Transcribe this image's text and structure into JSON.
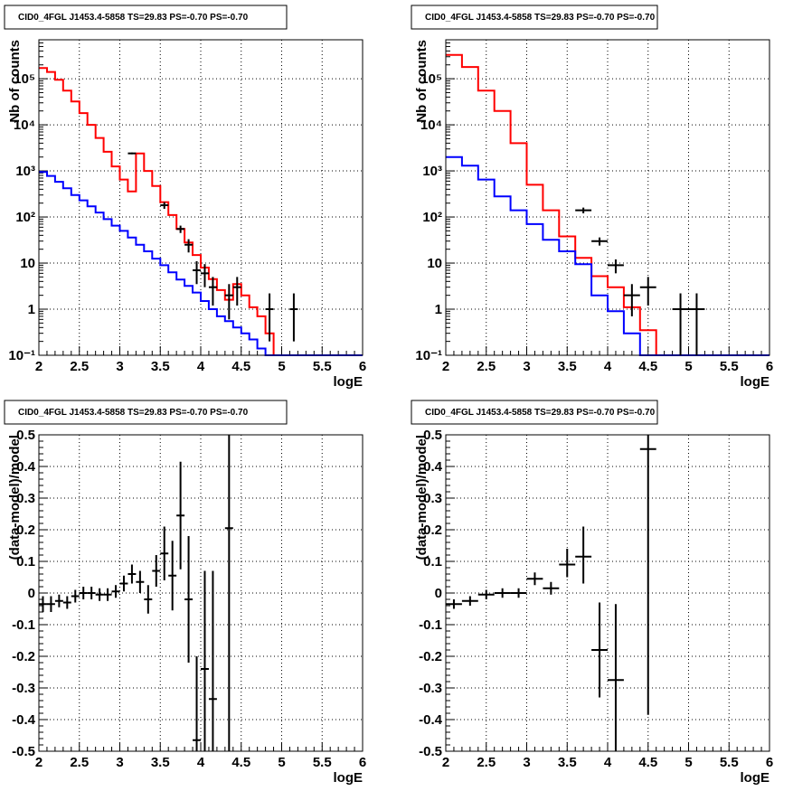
{
  "chart_data": [
    {
      "type": "line",
      "title": "CID0_4FGL J1453.4-5858 TS=29.83 PS=-0.70 PS=-0.70",
      "xlabel": "logE",
      "ylabel": "Nb of counts",
      "xlim": [
        2,
        6
      ],
      "ylim": [
        0.1,
        700000
      ],
      "yscale": "log",
      "grid": true,
      "xticks": [
        "2",
        "2.5",
        "3",
        "3.5",
        "4",
        "4.5",
        "5",
        "5.5",
        "6"
      ],
      "yticks": [
        "10⁻¹",
        "1",
        "10",
        "10²",
        "10³",
        "10⁴",
        "10⁵"
      ],
      "bin_edges": [
        2.0,
        2.1,
        2.2,
        2.3,
        2.4,
        2.5,
        2.6,
        2.7,
        2.8,
        2.9,
        3.0,
        3.1,
        3.2,
        3.3,
        3.4,
        3.5,
        3.6,
        3.7,
        3.8,
        3.9,
        4.0,
        4.1,
        4.2,
        4.3,
        4.4,
        4.5,
        4.6,
        4.7,
        4.8,
        4.9,
        5.0,
        5.1,
        5.2,
        5.3,
        5.4,
        5.5,
        5.6,
        5.7,
        5.8,
        5.9,
        6.0
      ],
      "series": [
        {
          "color": "#ff0000",
          "kind": "step",
          "values": [
            170000,
            140000,
            95000,
            55000,
            32000,
            18000,
            10000,
            5200,
            2600,
            1250,
            650,
            360,
            2400,
            1000,
            470,
            210,
            110,
            55,
            28,
            15,
            8,
            4.5,
            2.6,
            1.6,
            3.5,
            2.0,
            1.1,
            0.7,
            0.3,
            0.1,
            0.1,
            0.1,
            0.1,
            0.1,
            0.1,
            0.1,
            0.1,
            0.1,
            0.1,
            0.1
          ]
        },
        {
          "color": "#0000ff",
          "kind": "step",
          "values": [
            950,
            780,
            580,
            420,
            300,
            230,
            170,
            125,
            90,
            65,
            50,
            36,
            25,
            18,
            12.5,
            9,
            6.3,
            4.4,
            3.2,
            2.3,
            1.5,
            1.0,
            0.7,
            0.55,
            0.4,
            0.3,
            0.22,
            0.14,
            0.1,
            0.1,
            0.1,
            0.1,
            0.1,
            0.1,
            0.1,
            0.1,
            0.1,
            0.1,
            0.1,
            0.1
          ]
        },
        {
          "color": "#000000",
          "kind": "points",
          "x": [
            3.15,
            3.55,
            3.75,
            3.85,
            3.95,
            4.05,
            4.15,
            4.35,
            4.45,
            4.85,
            5.15
          ],
          "y": [
            2400,
            180,
            55,
            25,
            7,
            6,
            3,
            2,
            3,
            1,
            1
          ],
          "ylow": [
            2300,
            150,
            45,
            17,
            3.5,
            3,
            1.2,
            0.6,
            1.2,
            0.2,
            0.2
          ],
          "yhigh": [
            2500,
            210,
            65,
            33,
            11,
            9.5,
            5,
            3.5,
            5,
            2.2,
            2.2
          ],
          "xerr": 0.05
        }
      ]
    },
    {
      "type": "line",
      "title": "CID0_4FGL J1453.4-5858 TS=29.83 PS=-0.70 PS=-0.70",
      "xlabel": "logE",
      "ylabel": "Nb of counts",
      "xlim": [
        2,
        6
      ],
      "ylim": [
        0.1,
        700000
      ],
      "yscale": "log",
      "grid": true,
      "xticks": [
        "2",
        "2.5",
        "3",
        "3.5",
        "4",
        "4.5",
        "5",
        "5.5",
        "6"
      ],
      "yticks": [
        "10⁻¹",
        "1",
        "10",
        "10²",
        "10³",
        "10⁴",
        "10⁵"
      ],
      "bin_edges": [
        2.0,
        2.2,
        2.4,
        2.6,
        2.8,
        3.0,
        3.2,
        3.4,
        3.6,
        3.8,
        4.0,
        4.2,
        4.4,
        4.6,
        4.8,
        5.0,
        5.2,
        5.4,
        5.6,
        5.8,
        6.0
      ],
      "series": [
        {
          "color": "#ff0000",
          "kind": "step",
          "values": [
            330000,
            180000,
            55000,
            20000,
            4000,
            500,
            140,
            38,
            13,
            5.2,
            3.0,
            1.1,
            0.35,
            0.1,
            0.1,
            0.1,
            0.1,
            0.1,
            0.1,
            0.1
          ]
        },
        {
          "color": "#0000ff",
          "kind": "step",
          "values": [
            2000,
            1300,
            650,
            280,
            140,
            70,
            32,
            18,
            9.5,
            2.0,
            0.9,
            0.3,
            0.1,
            0.1,
            0.1,
            0.1,
            0.1,
            0.1,
            0.1,
            0.1
          ]
        },
        {
          "color": "#000000",
          "kind": "points",
          "x": [
            3.7,
            3.9,
            4.1,
            4.3,
            4.5,
            4.9,
            5.1
          ],
          "y": [
            140,
            30,
            9,
            2,
            3,
            1,
            1
          ],
          "ylow": [
            120,
            24,
            6,
            0.7,
            1.2,
            0.1,
            0.1
          ],
          "yhigh": [
            160,
            36,
            12,
            3.5,
            5,
            2.2,
            2.2
          ],
          "xerr": 0.1
        }
      ]
    },
    {
      "type": "scatter",
      "title": "CID0_4FGL J1453.4-5858 TS=29.83 PS=-0.70 PS=-0.70",
      "xlabel": "logE",
      "ylabel": "(data-model)/model",
      "xlim": [
        2,
        6
      ],
      "ylim": [
        -0.5,
        0.5
      ],
      "grid": true,
      "xticks": [
        "2",
        "2.5",
        "3",
        "3.5",
        "4",
        "4.5",
        "5",
        "5.5",
        "6"
      ],
      "yticks": [
        "-0.5",
        "-0.4",
        "-0.3",
        "-0.2",
        "-0.1",
        "0",
        "0.1",
        "0.2",
        "0.3",
        "0.4",
        "0.5"
      ],
      "series": [
        {
          "color": "#000000",
          "x": [
            2.05,
            2.15,
            2.25,
            2.35,
            2.45,
            2.55,
            2.65,
            2.75,
            2.85,
            2.95,
            3.05,
            3.15,
            3.25,
            3.35,
            3.45,
            3.55,
            3.65,
            3.75,
            3.85,
            3.95,
            4.05,
            4.15,
            4.35
          ],
          "y": [
            -0.035,
            -0.035,
            -0.025,
            -0.03,
            -0.01,
            0.0,
            0.0,
            -0.005,
            -0.005,
            0.005,
            0.03,
            0.06,
            0.035,
            -0.02,
            0.07,
            0.125,
            0.055,
            0.245,
            -0.02,
            -0.465,
            -0.24,
            -0.335,
            0.205
          ],
          "ylow": [
            -0.06,
            -0.06,
            -0.045,
            -0.05,
            -0.03,
            -0.02,
            -0.02,
            -0.025,
            -0.025,
            -0.015,
            0.005,
            0.03,
            0.0,
            -0.065,
            0.02,
            0.04,
            -0.055,
            0.075,
            -0.22,
            -0.5,
            -0.5,
            -0.5,
            -0.5
          ],
          "yhigh": [
            -0.01,
            -0.01,
            -0.005,
            -0.01,
            0.01,
            0.02,
            0.02,
            0.015,
            0.015,
            0.025,
            0.055,
            0.09,
            0.07,
            0.025,
            0.12,
            0.21,
            0.165,
            0.415,
            0.18,
            -0.2,
            0.07,
            0.07,
            0.5
          ],
          "xerr": 0.05
        }
      ]
    },
    {
      "type": "scatter",
      "title": "CID0_4FGL J1453.4-5858 TS=29.83 PS=-0.70 PS=-0.70",
      "xlabel": "logE",
      "ylabel": "(data-model)/model",
      "xlim": [
        2,
        6
      ],
      "ylim": [
        -0.5,
        0.5
      ],
      "grid": true,
      "xticks": [
        "2",
        "2.5",
        "3",
        "3.5",
        "4",
        "4.5",
        "5",
        "5.5",
        "6"
      ],
      "yticks": [
        "-0.5",
        "-0.4",
        "-0.3",
        "-0.2",
        "-0.1",
        "0",
        "0.1",
        "0.2",
        "0.3",
        "0.4",
        "0.5"
      ],
      "series": [
        {
          "color": "#000000",
          "x": [
            2.1,
            2.3,
            2.5,
            2.7,
            2.9,
            3.1,
            3.3,
            3.5,
            3.7,
            3.9,
            4.1,
            4.5
          ],
          "y": [
            -0.035,
            -0.025,
            -0.005,
            0.0,
            0.0,
            0.045,
            0.015,
            0.09,
            0.115,
            -0.18,
            -0.275,
            0.455
          ],
          "ylow": [
            -0.05,
            -0.04,
            -0.02,
            -0.015,
            -0.015,
            0.025,
            -0.005,
            0.05,
            0.03,
            -0.33,
            -0.5,
            -0.385
          ],
          "yhigh": [
            -0.02,
            -0.01,
            0.01,
            0.015,
            0.015,
            0.065,
            0.035,
            0.14,
            0.21,
            -0.03,
            -0.035,
            0.5
          ],
          "xerr": 0.1
        }
      ]
    }
  ]
}
